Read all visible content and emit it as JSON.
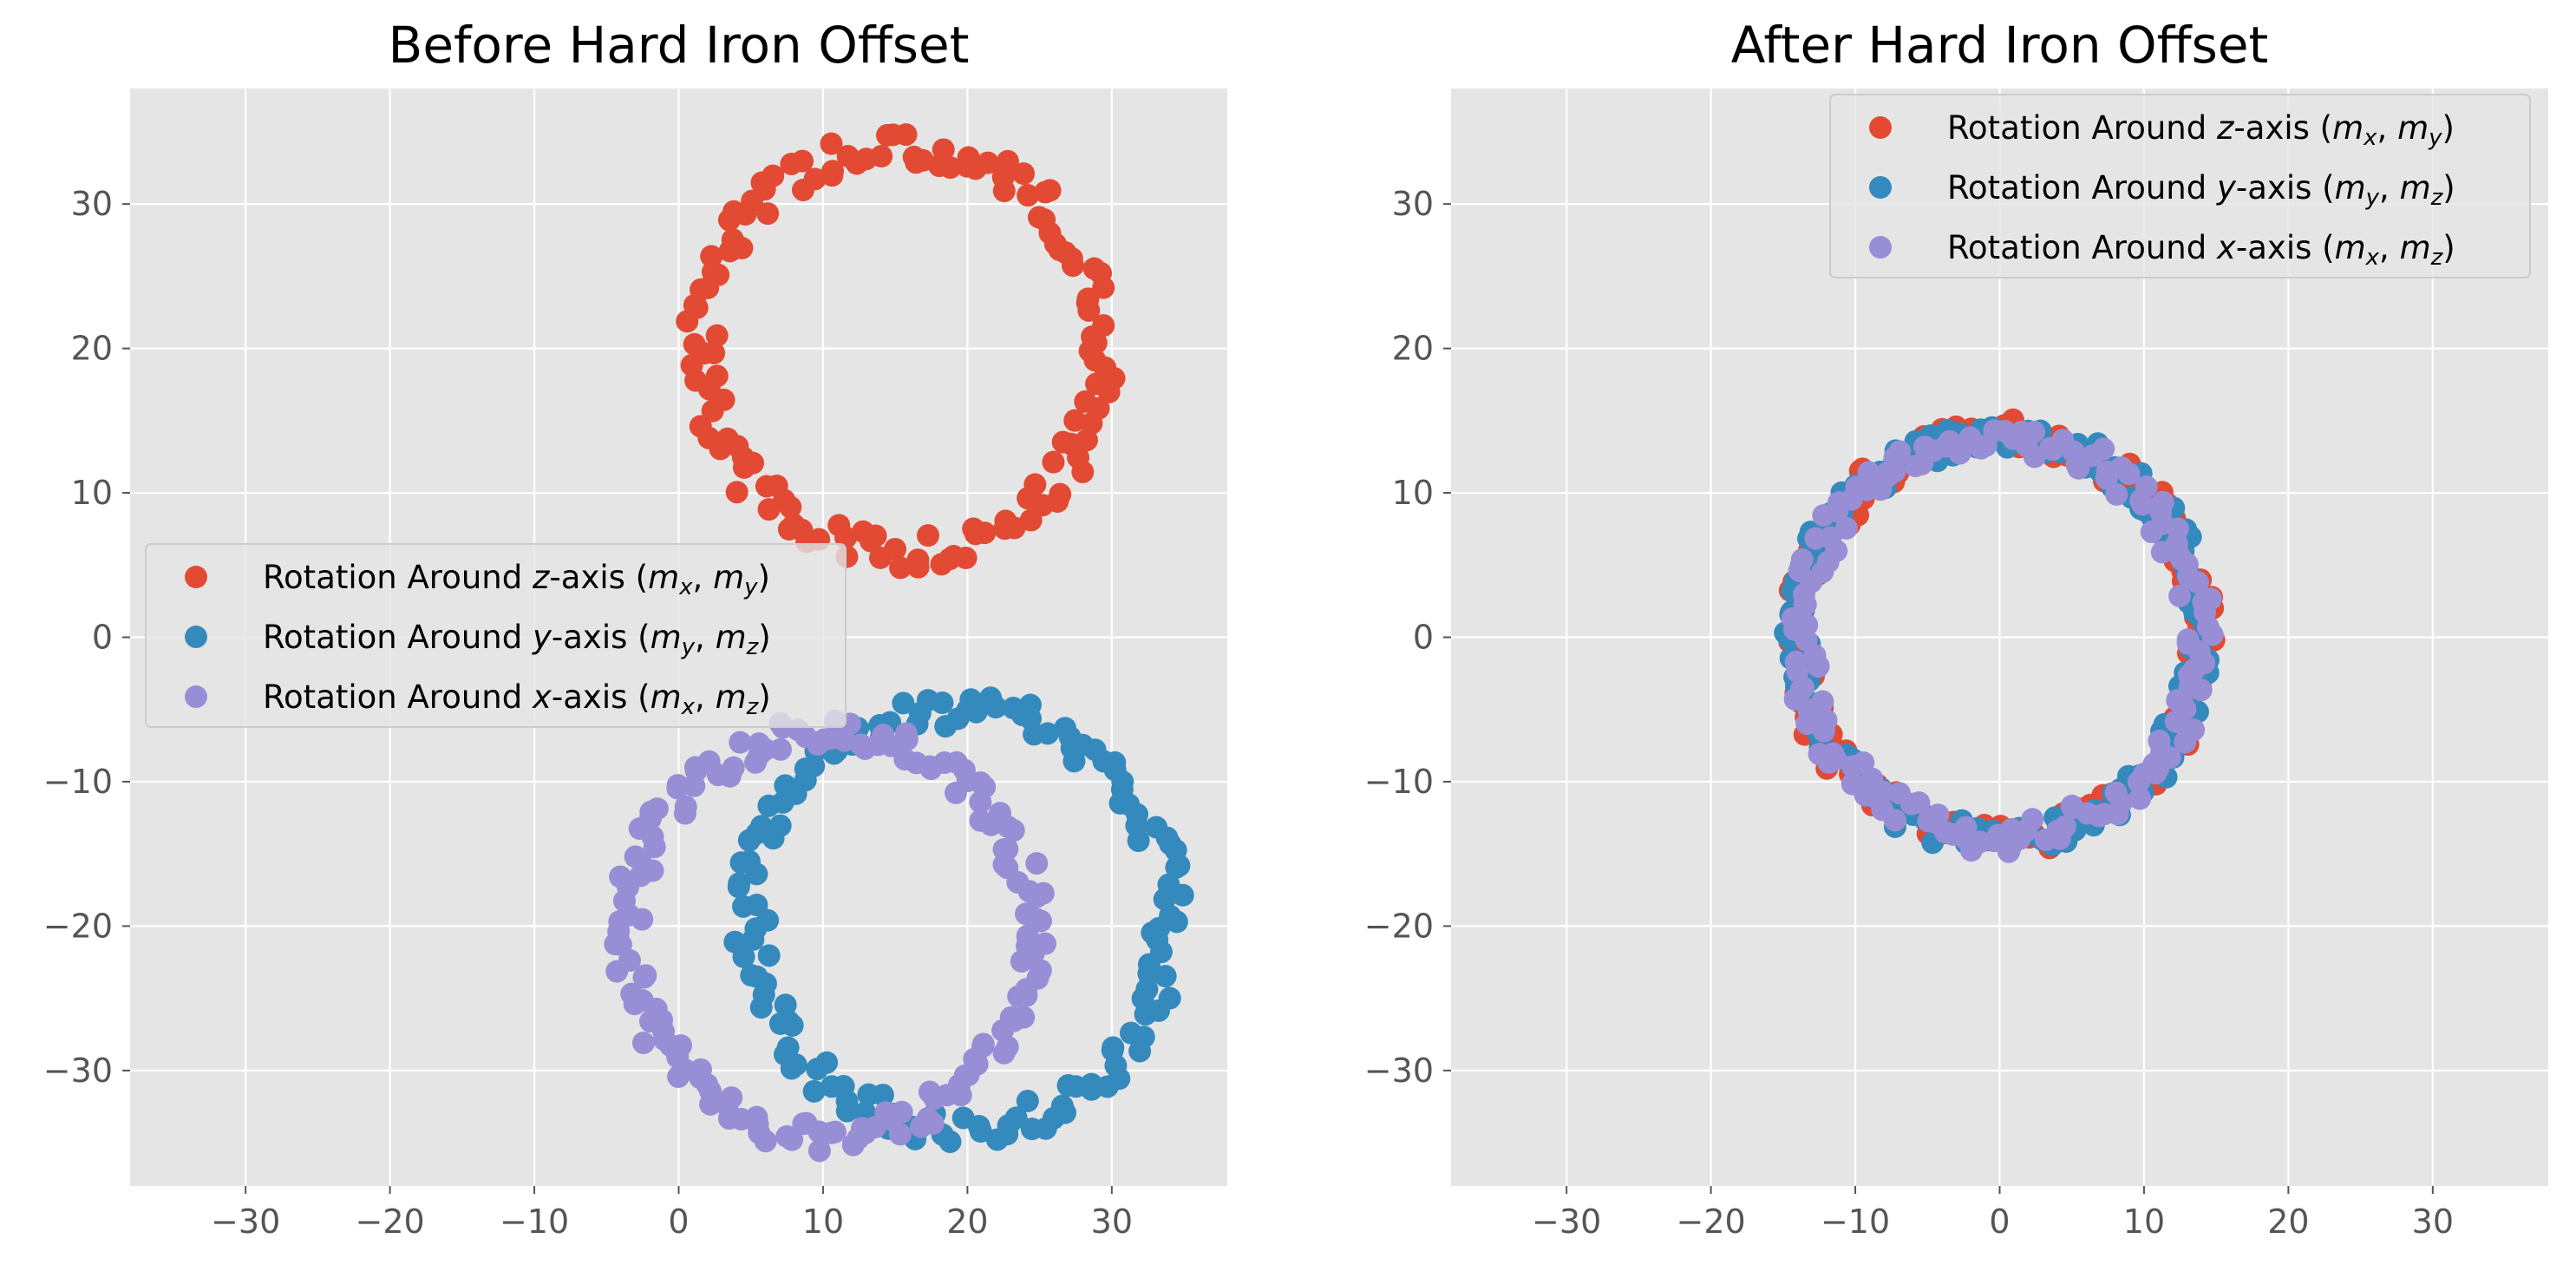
{
  "figure": {
    "background": "#ffffff"
  },
  "legend_labels": {
    "z": {
      "prefix": "Rotation Around ",
      "axis": "z",
      "middle": "-axis (",
      "var1": "m",
      "sub1": "x",
      "sep": ",",
      "var2": "m",
      "sub2": "y",
      "suffix": ")"
    },
    "y": {
      "prefix": "Rotation Around ",
      "axis": "y",
      "middle": "-axis (",
      "var1": "m",
      "sub1": "y",
      "sep": ",",
      "var2": "m",
      "sub2": "z",
      "suffix": ")"
    },
    "x": {
      "prefix": "Rotation Around ",
      "axis": "x",
      "middle": "-axis (",
      "var1": "m",
      "sub1": "x",
      "sep": ",",
      "var2": "m",
      "sub2": "z",
      "suffix": ")"
    }
  },
  "chart_data": [
    {
      "type": "scatter",
      "title": "Before Hard Iron Offset",
      "xlabel": "",
      "ylabel": "",
      "xlim": [
        -38,
        38
      ],
      "ylim": [
        -38,
        38
      ],
      "xticks": [
        -30,
        -20,
        -10,
        0,
        10,
        20,
        30
      ],
      "yticks": [
        -30,
        -20,
        -10,
        0,
        10,
        20,
        30
      ],
      "tick_labels_x": [
        "−30",
        "−20",
        "−10",
        "0",
        "10",
        "20",
        "30"
      ],
      "tick_labels_y": [
        "−30",
        "−20",
        "−10",
        "0",
        "10",
        "20",
        "30"
      ],
      "grid": true,
      "legend_position": "center-left",
      "style": {
        "plot_bg": "#e5e5e5",
        "grid_color": "#ffffff"
      },
      "series": [
        {
          "name_key": "z",
          "color": "#e24a33",
          "ring": {
            "center": [
              15.5,
              20.0
            ],
            "rx": 14.0,
            "ry": 14.0,
            "jitter": 1.2,
            "count": 140
          }
        },
        {
          "name_key": "y",
          "color": "#348abd",
          "ring": {
            "center": [
              19.5,
              -19.5
            ],
            "rx": 14.5,
            "ry": 14.5,
            "jitter": 1.2,
            "count": 150
          }
        },
        {
          "name_key": "x",
          "color": "#988ed5",
          "ring": {
            "center": [
              10.5,
              -20.5
            ],
            "rx": 14.0,
            "ry": 14.0,
            "jitter": 1.1,
            "count": 160
          }
        }
      ]
    },
    {
      "type": "scatter",
      "title": "After Hard Iron Offset",
      "xlabel": "",
      "ylabel": "",
      "xlim": [
        -38,
        38
      ],
      "ylim": [
        -38,
        38
      ],
      "xticks": [
        -30,
        -20,
        -10,
        0,
        10,
        20,
        30
      ],
      "yticks": [
        -30,
        -20,
        -10,
        0,
        10,
        20,
        30
      ],
      "tick_labels_x": [
        "−30",
        "−20",
        "−10",
        "0",
        "10",
        "20",
        "30"
      ],
      "tick_labels_y": [
        "−30",
        "−20",
        "−10",
        "0",
        "10",
        "20",
        "30"
      ],
      "grid": true,
      "legend_position": "top-right",
      "style": {
        "plot_bg": "#e5e5e5",
        "grid_color": "#ffffff"
      },
      "series": [
        {
          "name_key": "z",
          "color": "#e24a33",
          "ring": {
            "center": [
              0.0,
              0.0
            ],
            "rx": 14.0,
            "ry": 14.0,
            "jitter": 1.1,
            "count": 140
          }
        },
        {
          "name_key": "y",
          "color": "#348abd",
          "ring": {
            "center": [
              0.0,
              0.0
            ],
            "rx": 14.0,
            "ry": 14.0,
            "jitter": 1.1,
            "count": 150
          }
        },
        {
          "name_key": "x",
          "color": "#988ed5",
          "ring": {
            "center": [
              0.0,
              0.0
            ],
            "rx": 13.8,
            "ry": 13.8,
            "jitter": 1.1,
            "count": 160
          }
        }
      ]
    }
  ]
}
